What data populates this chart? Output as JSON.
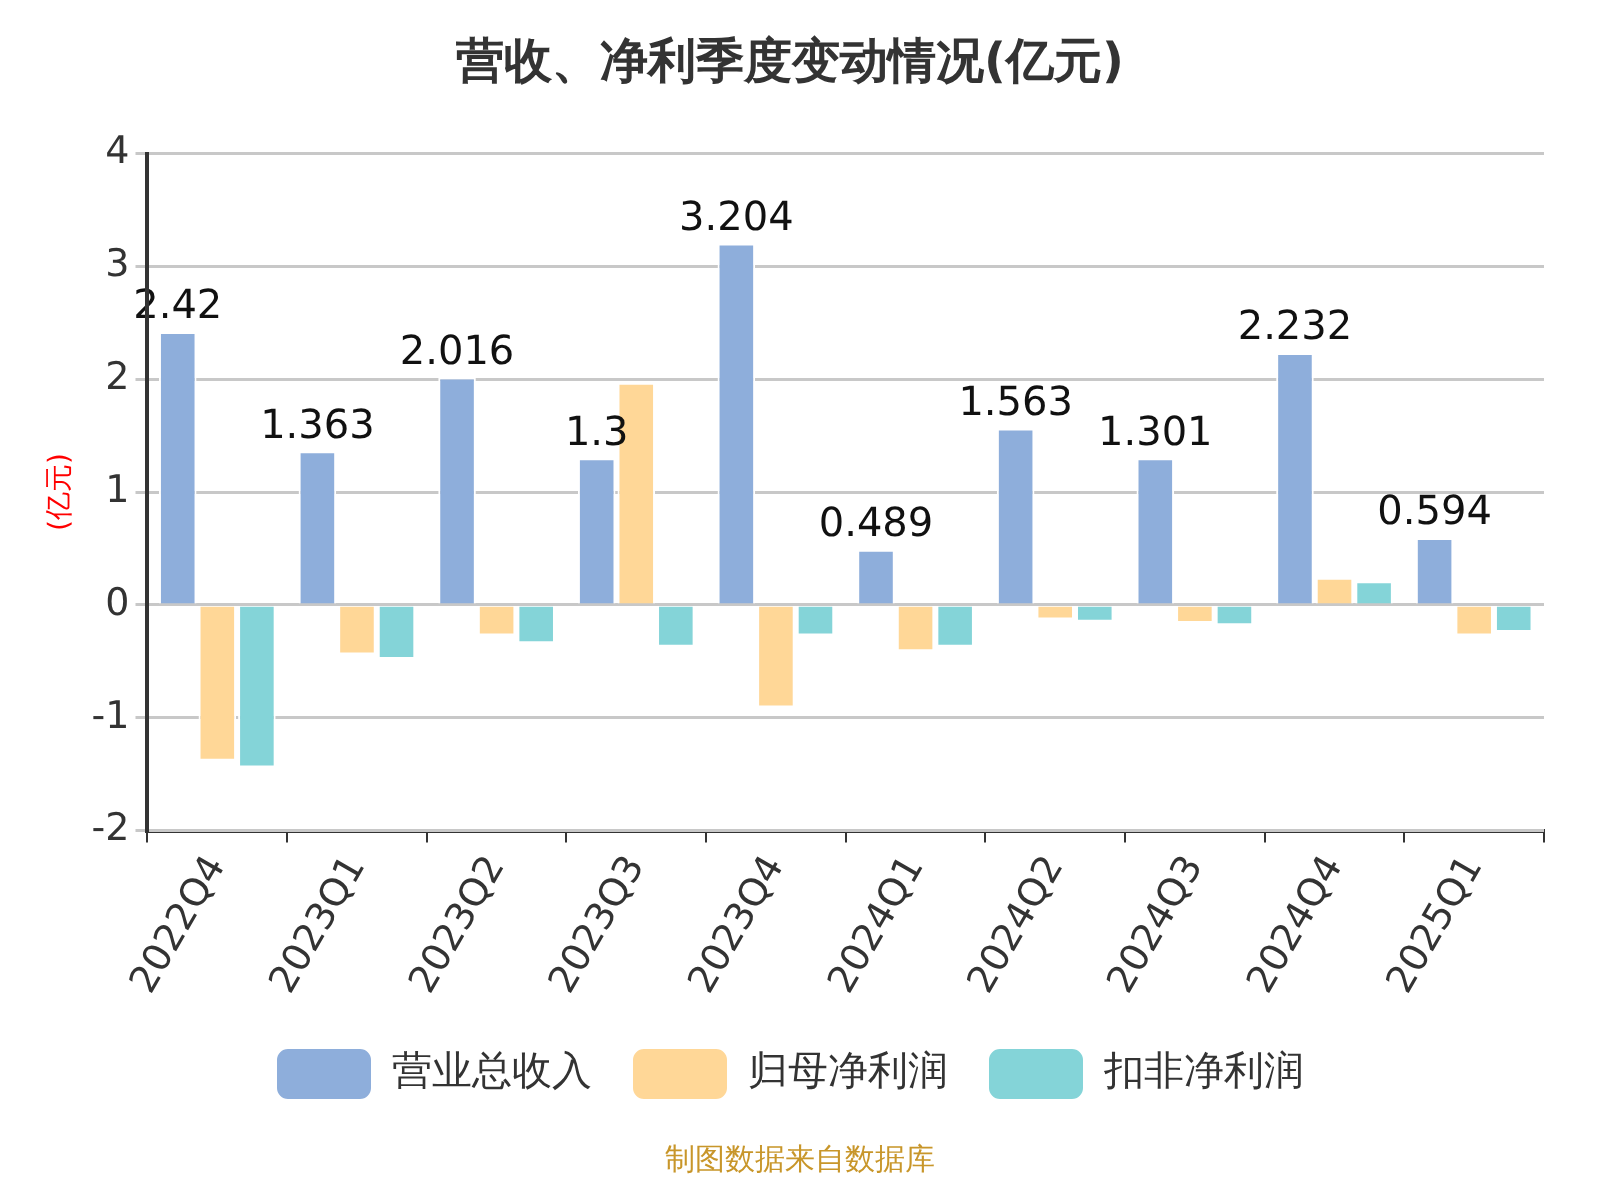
{
  "chart_data": {
    "type": "bar",
    "title": "营收、净利季度变动情况(亿元)",
    "ylabel": "(亿元)",
    "categories": [
      "2022Q4",
      "2023Q1",
      "2023Q2",
      "2023Q3",
      "2023Q4",
      "2024Q1",
      "2024Q2",
      "2024Q3",
      "2024Q4",
      "2025Q1"
    ],
    "series": [
      {
        "name": "营业总收入",
        "color": "#8eaedb",
        "values": [
          2.42,
          1.363,
          2.016,
          1.3,
          3.204,
          0.489,
          1.563,
          1.301,
          2.232,
          0.594
        ],
        "value_labels": [
          "2.42",
          "1.363",
          "2.016",
          "1.3",
          "3.204",
          "0.489",
          "1.563",
          "1.301",
          "2.232",
          "0.594"
        ]
      },
      {
        "name": "归母净利润",
        "color": "#ffd797",
        "values": [
          -1.38,
          -0.44,
          -0.27,
          1.97,
          -0.91,
          -0.41,
          -0.13,
          -0.16,
          0.24,
          -0.27
        ]
      },
      {
        "name": "扣非净利润",
        "color": "#84d4d8",
        "values": [
          -1.44,
          -0.48,
          -0.34,
          -0.37,
          -0.27,
          -0.37,
          -0.15,
          -0.18,
          0.21,
          -0.24
        ]
      }
    ],
    "ylim": [
      -2,
      4
    ],
    "yticks": [
      -2,
      -1,
      0,
      1,
      2,
      3,
      4
    ],
    "grid": "y",
    "legend": "bottom",
    "annotations": [
      "制图数据来自数据库"
    ]
  }
}
